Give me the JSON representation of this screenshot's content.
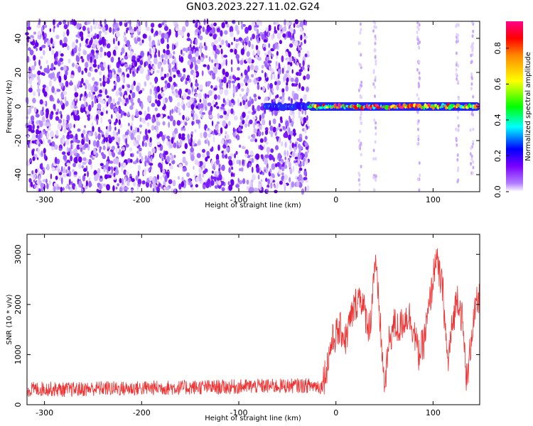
{
  "title": "GN03.2023.227.11.02.G24",
  "chart_data": [
    {
      "type": "heatmap",
      "xlabel": "Height of straight line (km)",
      "ylabel": "Frequency (Hz)",
      "xlim": [
        -318,
        148
      ],
      "ylim": [
        -50,
        50
      ],
      "x_ticks": [
        -300,
        -200,
        -100,
        0,
        100
      ],
      "y_ticks": [
        -40,
        -20,
        0,
        20,
        40
      ],
      "x_tick_labels": [
        "-300",
        "-200",
        "-100",
        "0",
        "100"
      ],
      "y_tick_labels": [
        "-40",
        "-20",
        "0",
        "20",
        "40"
      ],
      "colorbar": {
        "label": "Normalized spectral amplitude",
        "range": [
          0,
          0.95
        ],
        "ticks": [
          0.0,
          0.2,
          0.4,
          0.6,
          0.8
        ],
        "tick_labels": [
          "0.0",
          "0.2",
          "0.4",
          "0.6",
          "0.8"
        ],
        "colors": [
          "#ffffff",
          "#8800ff",
          "#0000ff",
          "#00ffff",
          "#00ff00",
          "#ffff00",
          "#ff8800",
          "#ff0000",
          "#ff0088"
        ]
      },
      "features": [
        {
          "x_range": [
            -318,
            -28
          ],
          "description": "broadband low-amplitude noise across all frequencies",
          "amplitude": 0.05
        },
        {
          "x_range": [
            -72,
            -28
          ],
          "y": 0,
          "amplitude": 0.25
        },
        {
          "x_range": [
            -28,
            148
          ],
          "y": 0,
          "amplitude": 0.7
        }
      ]
    },
    {
      "type": "line",
      "xlabel": "Height of straight line (km)",
      "ylabel": "SNR (10 * v/v)",
      "xlim": [
        -318,
        148
      ],
      "ylim": [
        0,
        3400
      ],
      "x_ticks": [
        -300,
        -200,
        -100,
        0,
        100
      ],
      "y_ticks": [
        0,
        1000,
        2000,
        3000
      ],
      "x_tick_labels": [
        "-300",
        "-200",
        "-100",
        "0",
        "100"
      ],
      "y_tick_labels": [
        "0",
        "1000",
        "2000",
        "3000"
      ],
      "color": "#ee3333",
      "series": [
        {
          "x": [
            -318,
            -300,
            -280,
            -260,
            -240,
            -220,
            -200,
            -180,
            -160,
            -140,
            -120,
            -100,
            -80,
            -60,
            -40,
            -20,
            -15,
            -10,
            -5,
            0,
            5,
            10,
            15,
            20,
            25,
            30,
            35,
            40,
            45,
            50,
            55,
            60,
            65,
            70,
            75,
            80,
            85,
            90,
            95,
            100,
            103,
            105,
            110,
            115,
            120,
            125,
            130,
            135,
            140,
            145,
            148
          ],
          "y": [
            300,
            320,
            300,
            310,
            330,
            320,
            330,
            340,
            340,
            350,
            350,
            360,
            370,
            370,
            380,
            380,
            350,
            700,
            1200,
            1400,
            1500,
            1300,
            1700,
            2000,
            2200,
            1800,
            1500,
            2900,
            1800,
            300,
            1300,
            1600,
            1500,
            1700,
            1800,
            1500,
            1000,
            1200,
            1800,
            2500,
            3000,
            2700,
            2300,
            800,
            1600,
            2200,
            1700,
            400,
            1500,
            2000,
            2100
          ]
        }
      ]
    }
  ]
}
